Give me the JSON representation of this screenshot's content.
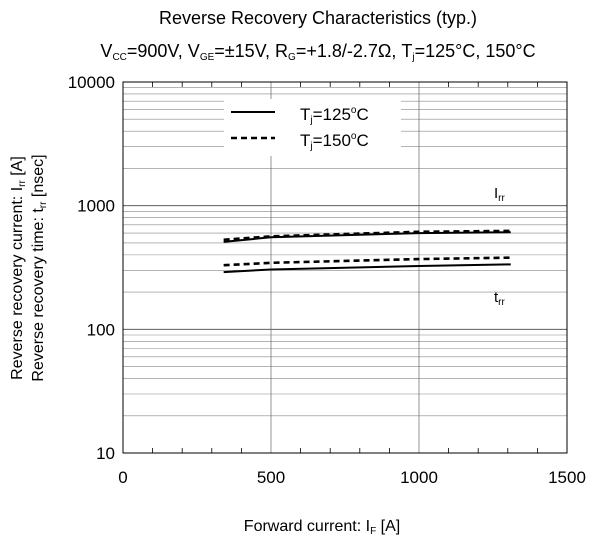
{
  "chart_data": {
    "type": "line",
    "title": "Reverse Recovery Characteristics (typ.)",
    "subtitle": {
      "vcc": {
        "main": "V",
        "sub": "CC",
        "rest": "=900V, "
      },
      "vge": {
        "main": "V",
        "sub": "GE",
        "rest": "=±15V, "
      },
      "rg": {
        "main": "R",
        "sub": "G",
        "rest": "=+1.8/-2.7Ω, "
      },
      "tj": {
        "main": "T",
        "sub": "j",
        "rest": "=125°C, 150°C"
      }
    },
    "xlabel": {
      "main": "Forward current: I",
      "sub": "F",
      "rest": " [A]"
    },
    "ylabel": {
      "line1": {
        "main": "Reverse recovery current: I",
        "sub": "rr",
        "rest": " [A]"
      },
      "line2": {
        "main": "Reverse recovery time: t",
        "sub": "rr",
        "rest": " [nsec]"
      }
    },
    "xlim": [
      0,
      1500
    ],
    "ylim": [
      10,
      10000
    ],
    "yscale": "log",
    "grid": true,
    "x_ticks": [
      "0",
      "500",
      "1000",
      "1500"
    ],
    "y_ticks": [
      "10",
      "100",
      "1000",
      "10000"
    ],
    "legend": {
      "placement": "top-left",
      "entries": [
        {
          "main": "T",
          "sub": "j",
          "rest": "=125",
          "deg": "o",
          "unit": "C",
          "style": "solid"
        },
        {
          "main": "T",
          "sub": "j",
          "rest": "=150",
          "deg": "o",
          "unit": "C",
          "style": "dashed"
        }
      ]
    },
    "series_labels": {
      "irr": {
        "main": "I",
        "sub": "rr"
      },
      "trr": {
        "main": "t",
        "sub": "rr"
      }
    },
    "series": [
      {
        "quantity": "Irr",
        "tj": "125°C",
        "style": "solid",
        "x": [
          340,
          500,
          1000,
          1310
        ],
        "y": [
          510,
          555,
          600,
          610
        ]
      },
      {
        "quantity": "Irr",
        "tj": "150°C",
        "style": "dashed",
        "x": [
          340,
          500,
          1000,
          1310
        ],
        "y": [
          530,
          565,
          615,
          625
        ]
      },
      {
        "quantity": "trr",
        "tj": "125°C",
        "style": "solid",
        "x": [
          340,
          500,
          1000,
          1310
        ],
        "y": [
          290,
          305,
          325,
          335
        ]
      },
      {
        "quantity": "trr",
        "tj": "150°C",
        "style": "dashed",
        "x": [
          340,
          500,
          1000,
          1310
        ],
        "y": [
          330,
          345,
          370,
          380
        ]
      }
    ]
  }
}
